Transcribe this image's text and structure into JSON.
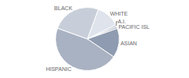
{
  "chart_data": {
    "type": "pie",
    "categories": [
      "WHITE",
      "A.I.",
      "PACIFIC ISL",
      "ASIAN",
      "HISPANIC",
      "BLACK"
    ],
    "values": [
      12,
      1,
      1,
      15,
      46,
      25
    ],
    "colors": [
      "#dfe4ec",
      "#c3cad6",
      "#aeb7c6",
      "#8f9bb0",
      "#a9b2c2",
      "#c8ced9"
    ]
  }
}
